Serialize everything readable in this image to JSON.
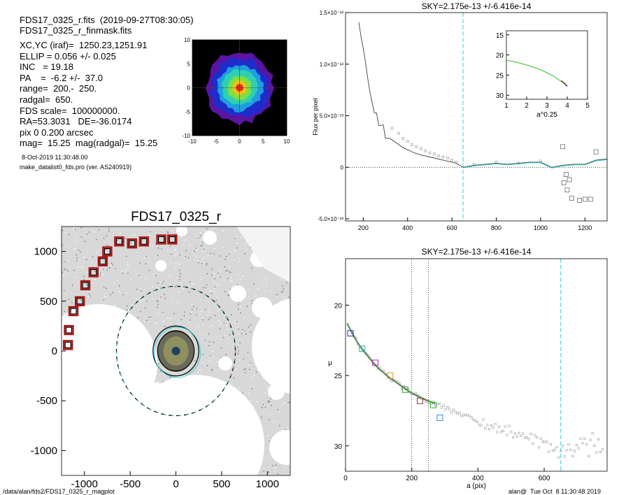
{
  "header": {
    "line1": "FDS17_0325_r.fits  (2019-09-27T08:30:05)",
    "line2": "FDS17_0325_r_finmask.fits",
    "info_lines": [
      "XC,YC (iraf)=  1250.23,1251.91",
      "ELLIP = 0.056 +/- 0.025",
      "INC   = 19.18",
      "PA    =  -6.2 +/-  37.0",
      "range=  200.-  250.",
      "radgal=  650.",
      "FDS scale=  100000000.",
      "RA=53.3031   DE=-36.0174",
      "pix 0 0.200 arcsec",
      "mag=  15.25  mag(radgal)=  15.25"
    ],
    "date_line": "8-Oct-2019 11:30:48.00",
    "program_line": "make_datalist0_fds.pro (ver. AS240919)"
  },
  "footer": {
    "left": "/data/alan/fds2/FDS17_0325_r_magplot",
    "right": "alan@  Tue Oct  8 11:30:48 2019"
  },
  "colors": {
    "cyan_dash": "#34d0d8",
    "grey_points": "#909090",
    "profile_dark": "#404040",
    "green": "#30c030",
    "red_box": "#b01010"
  },
  "chart_data": [
    {
      "id": "thumbnail",
      "type": "heatmap",
      "title": "",
      "xlabel": "",
      "ylabel": "",
      "xlim": [
        -10,
        10
      ],
      "ylim": [
        -10,
        10
      ],
      "xticks": [
        "-10",
        "-5",
        "0",
        "5",
        "10"
      ],
      "yticks": [
        "10",
        "5",
        "0",
        "-5",
        "-10"
      ],
      "contour_radii": [
        8.5,
        7.5,
        6.3,
        5.0,
        3.8,
        2.6,
        1.6,
        0.8
      ],
      "contour_colors": [
        "#000000",
        "#5a14a0",
        "#1e2ccc",
        "#1e9ee0",
        "#2ed0b0",
        "#7ee040",
        "#f0c020",
        "#e03010"
      ]
    },
    {
      "id": "sky-profile",
      "type": "line",
      "title": "SKY=2.175e-13 +/-6.416e-14",
      "xlabel": "",
      "ylabel": "Flux per pixel",
      "xlim": [
        120,
        1300
      ],
      "ylim": [
        -5.2e-13,
        1.5e-12
      ],
      "yticks": [
        "1.5×10⁻¹²",
        "1.0×10⁻¹²",
        "5.0×10⁻¹³",
        "0",
        "-5.0×10⁻¹³"
      ],
      "ytick_values": [
        1.5e-12,
        1e-12,
        5e-13,
        0,
        -5e-13
      ],
      "xticks": [
        200,
        400,
        600,
        800,
        1000,
        1200
      ],
      "radgal": 650,
      "profile_x": [
        180,
        190,
        200,
        210,
        220,
        230,
        240,
        250,
        260,
        270,
        280,
        290,
        300,
        320,
        340,
        360,
        380,
        400,
        430,
        460,
        500,
        540,
        580,
        620,
        650,
        700,
        750,
        800,
        850,
        900,
        950,
        1000,
        1050,
        1100,
        1150,
        1200,
        1250,
        1300
      ],
      "profile_y": [
        1.42e-12,
        1.25e-12,
        1.1e-12,
        9.8e-13,
        8.5e-13,
        7.8e-13,
        6.6e-13,
        5.8e-13,
        5.2e-13,
        4.5e-13,
        4e-13,
        3.6e-13,
        3.3e-13,
        2.8e-13,
        2.5e-13,
        2.2e-13,
        1.9e-13,
        1.7e-13,
        1.4e-13,
        1.2e-13,
        1e-13,
        8e-14,
        6e-14,
        4e-14,
        0.0,
        2e-14,
        3e-14,
        4e-14,
        3e-14,
        4e-14,
        5e-14,
        5e-14,
        0.0,
        2e-14,
        3e-14,
        3e-14,
        7e-14,
        8e-14
      ],
      "scatter_x": [
        330,
        360,
        380,
        400,
        420,
        440,
        460,
        480,
        500,
        520,
        540,
        560,
        580,
        600,
        620,
        700,
        800,
        900,
        1000
      ],
      "scatter_y": [
        3.8e-13,
        3.3e-13,
        2.8e-13,
        2.5e-13,
        2.2e-13,
        2e-13,
        1.8e-13,
        1.6e-13,
        1.4e-13,
        1.3e-13,
        1.1e-13,
        1e-13,
        9e-14,
        7e-14,
        5e-14,
        3e-14,
        5e-14,
        4e-14,
        6e-14
      ],
      "outlier_x": [
        1100,
        1105,
        1115,
        1120,
        1130,
        1140,
        1175,
        1200,
        1225,
        1250
      ],
      "outlier_y": [
        2e-13,
        -1.5e-13,
        -7e-14,
        -2.2e-13,
        -1.2e-13,
        -3e-13,
        -3.2e-13,
        -3.1e-13,
        -3.1e-13,
        1.5e-13
      ]
    },
    {
      "id": "inset",
      "type": "line",
      "title": "",
      "xlabel": "a^0.25",
      "ylabel": "",
      "xlim": [
        1,
        5
      ],
      "ylim": [
        31,
        14
      ],
      "xticks": [
        1,
        2,
        3,
        4,
        5
      ],
      "yticks": [
        15,
        20,
        25,
        30
      ],
      "x": [
        1.0,
        1.5,
        2.0,
        2.5,
        3.0,
        3.3,
        3.6,
        3.8,
        4.0
      ],
      "y": [
        21.3,
        21.8,
        22.5,
        23.3,
        24.4,
        25.2,
        26.2,
        26.9,
        27.7
      ]
    },
    {
      "id": "sky-map",
      "type": "scatter",
      "title": "FDS17_0325_r",
      "xlabel": "",
      "ylabel": "",
      "xlim": [
        -1250,
        1250
      ],
      "ylim": [
        -1250,
        1250
      ],
      "xticks": [
        "-1000",
        "-500",
        "0",
        "500",
        "1000"
      ],
      "yticks": [
        "1000",
        "500",
        "0",
        "-500",
        "-1000"
      ],
      "mask_boxes_x": [
        -1180,
        -1170,
        -1120,
        -1050,
        -990,
        -900,
        -800,
        -750,
        -620,
        -480,
        -350,
        -160,
        -40
      ],
      "mask_boxes_y": [
        60,
        210,
        400,
        500,
        660,
        790,
        900,
        1000,
        1100,
        1080,
        1100,
        1120,
        1120
      ],
      "radgal_ring": 650,
      "inner_rings": [
        200,
        250
      ]
    },
    {
      "id": "mu-profile",
      "type": "line",
      "title": "SKY=2.175e-13 +/-6.416e-14",
      "xlabel": "a (pix)",
      "ylabel": "μ",
      "xlim": [
        0,
        790
      ],
      "ylim": [
        31.8,
        16.7
      ],
      "xticks": [
        0,
        200,
        400,
        600
      ],
      "yticks": [
        20,
        25,
        30
      ],
      "range_lines": [
        200,
        250
      ],
      "radgal": 650,
      "x": [
        5,
        20,
        40,
        60,
        80,
        100,
        130,
        160,
        190,
        220,
        250,
        270,
        290,
        320,
        360,
        400,
        450,
        500,
        550,
        600,
        650
      ],
      "y": [
        21.3,
        22.0,
        22.8,
        23.4,
        24.0,
        24.5,
        25.1,
        25.6,
        26.1,
        26.5,
        26.8,
        27.0,
        27.2,
        27.5,
        27.8,
        28.2,
        28.6,
        29.0,
        29.4,
        29.9,
        30.6
      ],
      "box_x": [
        15,
        50,
        90,
        135,
        180,
        225,
        265,
        285
      ],
      "box_y": [
        22.0,
        23.1,
        24.1,
        25.0,
        26.0,
        26.8,
        27.1,
        28.0
      ],
      "box_colors": [
        "#3030c0",
        "#30b0b0",
        "#b030b0",
        "#e09030",
        "#30a030",
        "#a03030",
        "#30c030",
        "#3090e0"
      ]
    }
  ]
}
